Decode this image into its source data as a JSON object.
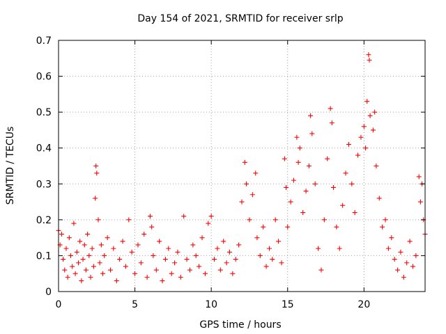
{
  "chart_data": {
    "type": "scatter",
    "title": "Day 154 of 2021, SRMTID for receiver srlp",
    "xlabel": "GPS time / hours",
    "ylabel": "SRMTID / TECUs",
    "xlim": [
      0,
      24
    ],
    "ylim": [
      0,
      0.7
    ],
    "x_ticks": [
      0,
      5,
      10,
      15,
      20
    ],
    "x_tick_labels": [
      "0",
      "5",
      "10",
      "15",
      "20"
    ],
    "y_ticks": [
      0,
      0.1,
      0.2,
      0.3,
      0.4,
      0.5,
      0.6,
      0.7
    ],
    "y_tick_labels": [
      "0",
      "0.1",
      "0.2",
      "0.3",
      "0.4",
      "0.5",
      "0.6",
      "0.7"
    ],
    "grid": true,
    "marker": "+",
    "series": [
      {
        "name": "SRMTID",
        "color": "#ff0000",
        "points": [
          [
            0.0,
            0.17
          ],
          [
            0.1,
            0.13
          ],
          [
            0.2,
            0.16
          ],
          [
            0.3,
            0.09
          ],
          [
            0.4,
            0.06
          ],
          [
            0.5,
            0.12
          ],
          [
            0.6,
            0.04
          ],
          [
            0.7,
            0.15
          ],
          [
            0.8,
            0.1
          ],
          [
            0.9,
            0.07
          ],
          [
            1.0,
            0.19
          ],
          [
            1.1,
            0.05
          ],
          [
            1.2,
            0.11
          ],
          [
            1.3,
            0.08
          ],
          [
            1.4,
            0.14
          ],
          [
            1.5,
            0.03
          ],
          [
            1.6,
            0.09
          ],
          [
            1.7,
            0.13
          ],
          [
            1.8,
            0.06
          ],
          [
            1.9,
            0.16
          ],
          [
            2.0,
            0.1
          ],
          [
            2.1,
            0.04
          ],
          [
            2.2,
            0.12
          ],
          [
            2.3,
            0.07
          ],
          [
            2.4,
            0.26
          ],
          [
            2.45,
            0.35
          ],
          [
            2.5,
            0.33
          ],
          [
            2.6,
            0.2
          ],
          [
            2.7,
            0.08
          ],
          [
            2.8,
            0.13
          ],
          [
            2.9,
            0.05
          ],
          [
            3.0,
            0.1
          ],
          [
            3.2,
            0.15
          ],
          [
            3.4,
            0.06
          ],
          [
            3.6,
            0.12
          ],
          [
            3.8,
            0.03
          ],
          [
            4.0,
            0.09
          ],
          [
            4.2,
            0.14
          ],
          [
            4.4,
            0.07
          ],
          [
            4.6,
            0.2
          ],
          [
            4.8,
            0.11
          ],
          [
            5.0,
            0.05
          ],
          [
            5.2,
            0.13
          ],
          [
            5.4,
            0.08
          ],
          [
            5.6,
            0.16
          ],
          [
            5.8,
            0.04
          ],
          [
            6.0,
            0.21
          ],
          [
            6.1,
            0.18
          ],
          [
            6.2,
            0.1
          ],
          [
            6.4,
            0.06
          ],
          [
            6.6,
            0.14
          ],
          [
            6.8,
            0.03
          ],
          [
            7.0,
            0.09
          ],
          [
            7.2,
            0.12
          ],
          [
            7.4,
            0.05
          ],
          [
            7.6,
            0.08
          ],
          [
            7.8,
            0.11
          ],
          [
            8.0,
            0.04
          ],
          [
            8.2,
            0.21
          ],
          [
            8.4,
            0.09
          ],
          [
            8.6,
            0.06
          ],
          [
            8.8,
            0.13
          ],
          [
            9.0,
            0.1
          ],
          [
            9.2,
            0.07
          ],
          [
            9.4,
            0.15
          ],
          [
            9.6,
            0.05
          ],
          [
            9.8,
            0.19
          ],
          [
            10.0,
            0.21
          ],
          [
            10.2,
            0.09
          ],
          [
            10.4,
            0.12
          ],
          [
            10.6,
            0.06
          ],
          [
            10.8,
            0.14
          ],
          [
            11.0,
            0.08
          ],
          [
            11.2,
            0.11
          ],
          [
            11.4,
            0.05
          ],
          [
            11.6,
            0.09
          ],
          [
            11.8,
            0.13
          ],
          [
            12.0,
            0.25
          ],
          [
            12.2,
            0.36
          ],
          [
            12.3,
            0.3
          ],
          [
            12.5,
            0.2
          ],
          [
            12.7,
            0.27
          ],
          [
            12.9,
            0.33
          ],
          [
            13.0,
            0.15
          ],
          [
            13.2,
            0.1
          ],
          [
            13.4,
            0.18
          ],
          [
            13.6,
            0.07
          ],
          [
            13.8,
            0.12
          ],
          [
            14.0,
            0.09
          ],
          [
            14.2,
            0.2
          ],
          [
            14.4,
            0.14
          ],
          [
            14.6,
            0.08
          ],
          [
            14.8,
            0.37
          ],
          [
            14.9,
            0.29
          ],
          [
            15.0,
            0.18
          ],
          [
            15.2,
            0.25
          ],
          [
            15.4,
            0.31
          ],
          [
            15.6,
            0.43
          ],
          [
            15.7,
            0.36
          ],
          [
            15.8,
            0.4
          ],
          [
            16.0,
            0.22
          ],
          [
            16.2,
            0.28
          ],
          [
            16.4,
            0.35
          ],
          [
            16.5,
            0.49
          ],
          [
            16.6,
            0.44
          ],
          [
            16.8,
            0.3
          ],
          [
            17.0,
            0.12
          ],
          [
            17.2,
            0.06
          ],
          [
            17.4,
            0.2
          ],
          [
            17.6,
            0.37
          ],
          [
            17.8,
            0.51
          ],
          [
            17.9,
            0.47
          ],
          [
            18.0,
            0.29
          ],
          [
            18.2,
            0.18
          ],
          [
            18.4,
            0.12
          ],
          [
            18.6,
            0.24
          ],
          [
            18.8,
            0.33
          ],
          [
            19.0,
            0.41
          ],
          [
            19.2,
            0.3
          ],
          [
            19.4,
            0.22
          ],
          [
            19.6,
            0.38
          ],
          [
            19.8,
            0.43
          ],
          [
            20.0,
            0.46
          ],
          [
            20.1,
            0.4
          ],
          [
            20.2,
            0.53
          ],
          [
            20.3,
            0.66
          ],
          [
            20.35,
            0.645
          ],
          [
            20.4,
            0.49
          ],
          [
            20.6,
            0.45
          ],
          [
            20.7,
            0.5
          ],
          [
            20.8,
            0.35
          ],
          [
            21.0,
            0.26
          ],
          [
            21.2,
            0.18
          ],
          [
            21.4,
            0.2
          ],
          [
            21.6,
            0.12
          ],
          [
            21.8,
            0.15
          ],
          [
            22.0,
            0.09
          ],
          [
            22.2,
            0.06
          ],
          [
            22.4,
            0.11
          ],
          [
            22.6,
            0.04
          ],
          [
            22.8,
            0.08
          ],
          [
            23.0,
            0.14
          ],
          [
            23.2,
            0.07
          ],
          [
            23.4,
            0.1
          ],
          [
            23.6,
            0.32
          ],
          [
            23.7,
            0.25
          ],
          [
            23.8,
            0.3
          ],
          [
            23.9,
            0.2
          ],
          [
            24.0,
            0.16
          ]
        ]
      }
    ]
  }
}
